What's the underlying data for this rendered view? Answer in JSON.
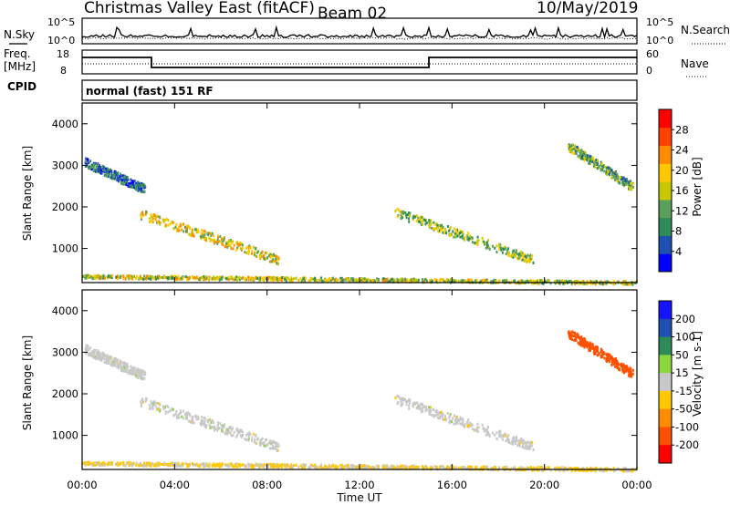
{
  "header": {
    "title": "Christmas Valley East (fitACF)",
    "beam": "Beam 02",
    "date": "10/May/2019"
  },
  "param_panels": {
    "nsky": {
      "left_label": "N.Sky",
      "right_label": "N.Search",
      "left_ticks": [
        "10^5",
        "10^0"
      ],
      "right_ticks": [
        "10^5",
        "10^0"
      ]
    },
    "freq": {
      "left_label_1": "Freq.",
      "left_label_2": "[MHz]",
      "left_ticks": [
        "18",
        "8"
      ],
      "right_label": "Nave",
      "right_ticks": [
        "60",
        "0"
      ]
    },
    "cpid": {
      "label": "CPID",
      "value": "normal (fast) 151 RF"
    }
  },
  "colors": {
    "power_scale": [
      "#0000ff",
      "#1e50b4",
      "#2e8b57",
      "#5aa05a",
      "#c8c800",
      "#ffc800",
      "#ff8c00",
      "#ff4000",
      "#ff0000"
    ],
    "velocity_scale": [
      "#1414ff",
      "#1e50b4",
      "#2e8b57",
      "#8bd63c",
      "#c8c8c8",
      "#ffc800",
      "#ff8c00",
      "#ff5000",
      "#ff0000"
    ],
    "ground_scatter": "#c8c8c8"
  },
  "chart_data": [
    {
      "type": "heatmap",
      "name": "power",
      "xlabel": "",
      "ylabel": "Slant Range [km]",
      "xlim": [
        "00:00",
        "24:00"
      ],
      "ylim": [
        180,
        4500
      ],
      "x_tick_labels": [
        "00:00",
        "04:00",
        "08:00",
        "12:00",
        "16:00",
        "20:00",
        "00:00"
      ],
      "y_tick_labels": [
        "1000",
        "2000",
        "3000",
        "4000"
      ],
      "colorbar": {
        "label": "Power [dB]",
        "range": [
          0,
          32
        ],
        "tick_labels": [
          "4",
          "8",
          "12",
          "16",
          "20",
          "24",
          "28"
        ]
      },
      "scatter_regions": [
        {
          "t_start": 0.1,
          "t_end": 2.7,
          "r_start": 3100,
          "r_end": 2450,
          "value": 8
        },
        {
          "t_start": 2.5,
          "t_end": 8.5,
          "r_start": 1850,
          "r_end": 750,
          "value": 20
        },
        {
          "t_start": 13.5,
          "t_end": 19.5,
          "r_start": 1900,
          "r_end": 750,
          "value": 16
        },
        {
          "t_start": 21.0,
          "t_end": 23.8,
          "r_start": 3500,
          "r_end": 2500,
          "value": 14
        },
        {
          "t_start": 0.0,
          "t_end": 24.0,
          "r_start": 350,
          "r_end": 200,
          "value": 18
        }
      ]
    },
    {
      "type": "heatmap",
      "name": "velocity",
      "xlabel": "Time UT",
      "ylabel": "Slant Range [km]",
      "xlim": [
        "00:00",
        "24:00"
      ],
      "ylim": [
        180,
        4500
      ],
      "x_tick_labels": [
        "00:00",
        "04:00",
        "08:00",
        "12:00",
        "16:00",
        "20:00",
        "00:00"
      ],
      "y_tick_labels": [
        "1000",
        "2000",
        "3000",
        "4000"
      ],
      "colorbar": {
        "label": "Velocity [m s-1]",
        "tick_labels": [
          "200",
          "100",
          "50",
          "15",
          "-15",
          "-50",
          "-100",
          "-200"
        ]
      },
      "scatter_regions": [
        {
          "t_start": 0.1,
          "t_end": 2.7,
          "r_start": 3100,
          "r_end": 2450,
          "value": 0
        },
        {
          "t_start": 2.5,
          "t_end": 8.5,
          "r_start": 1850,
          "r_end": 750,
          "value": 0
        },
        {
          "t_start": 13.5,
          "t_end": 19.5,
          "r_start": 1900,
          "r_end": 750,
          "value": 0
        },
        {
          "t_start": 21.0,
          "t_end": 23.8,
          "r_start": 3500,
          "r_end": 2500,
          "value": -150
        },
        {
          "t_start": 0.0,
          "t_end": 24.0,
          "r_start": 350,
          "r_end": 200,
          "value": -20
        }
      ]
    }
  ]
}
